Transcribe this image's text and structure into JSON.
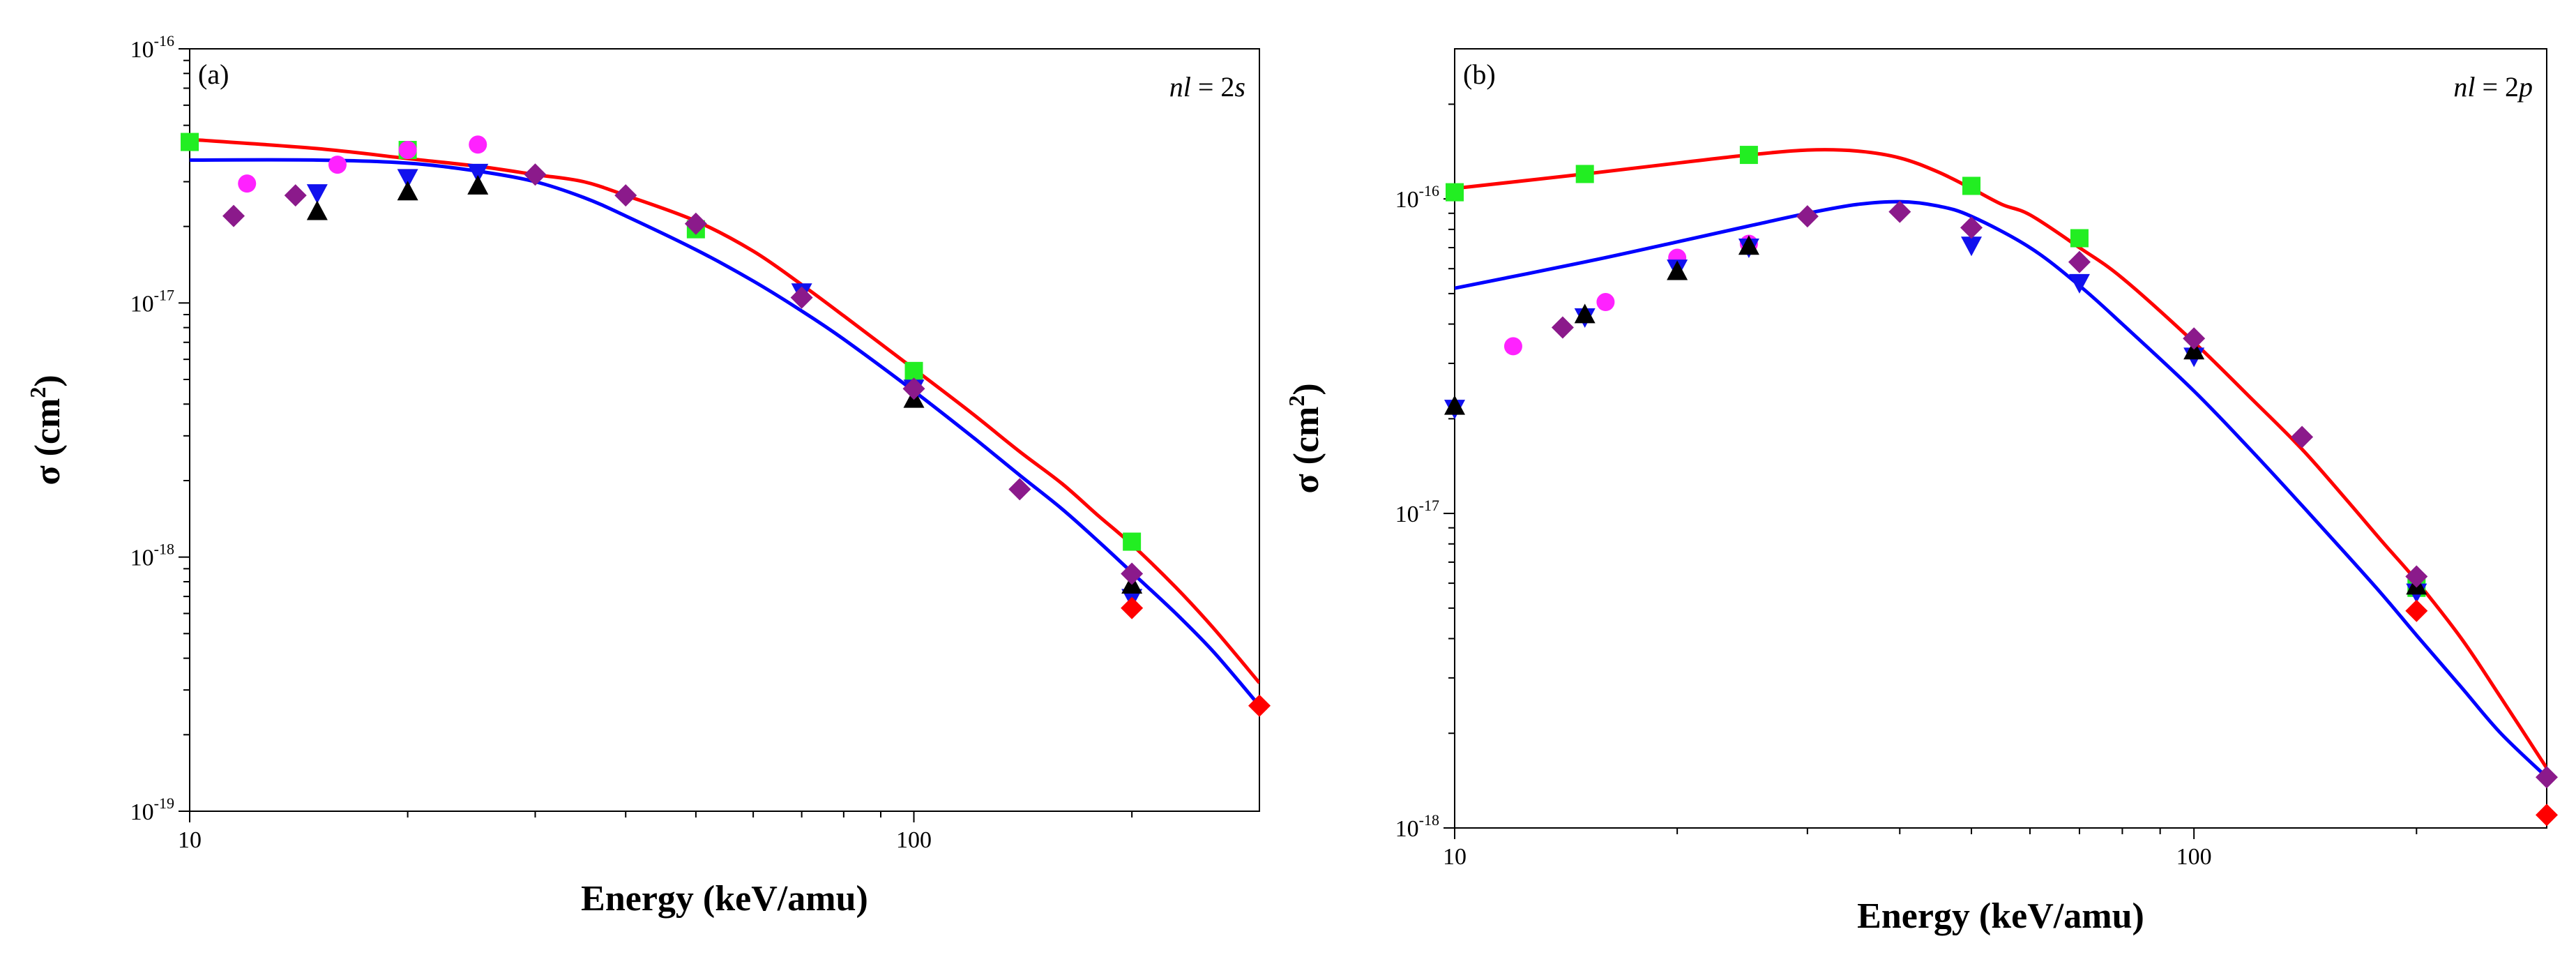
{
  "chart_data": [
    {
      "type": "scatter",
      "panel_label": "(a)",
      "annotation": {
        "prefix": "nl",
        "text": " = 2",
        "suffix": "s"
      },
      "xlabel": "Energy (keV/amu)",
      "ylabel": {
        "sym": "σ",
        "text": " (cm",
        "sup": "2",
        "close": ")"
      },
      "xscale": "log",
      "yscale": "log",
      "xlim": [
        10,
        300
      ],
      "ylim": [
        1e-19,
        1e-16
      ],
      "xticks": [
        {
          "value": 10,
          "label": "10"
        },
        {
          "value": 100,
          "label": "100"
        }
      ],
      "yticks": [
        {
          "value": 1e-19,
          "base": "10",
          "exp": "-19"
        },
        {
          "value": 1e-18,
          "base": "10",
          "exp": "-18"
        },
        {
          "value": 1e-17,
          "base": "10",
          "exp": "-17"
        },
        {
          "value": 1e-16,
          "base": "10",
          "exp": "-16"
        }
      ],
      "lines": [
        {
          "name": "red curve",
          "color": "#ff0000",
          "x": [
            10,
            15,
            20,
            25,
            30,
            35,
            40,
            50,
            60,
            70,
            80,
            100,
            120,
            140,
            160,
            180,
            200,
            230,
            260,
            300
          ],
          "y": [
            4.4e-17,
            4.05e-17,
            3.7e-17,
            3.45e-17,
            3.2e-17,
            3e-17,
            2.65e-17,
            2.1e-17,
            1.6e-17,
            1.18e-17,
            8.9e-18,
            5.5e-18,
            3.7e-18,
            2.6e-18,
            1.95e-18,
            1.45e-18,
            1.12e-18,
            7.6e-19,
            5.2e-19,
            3.2e-19
          ]
        },
        {
          "name": "blue curve",
          "color": "#0000ff",
          "x": [
            10,
            15,
            20,
            25,
            30,
            35,
            40,
            50,
            60,
            70,
            80,
            100,
            120,
            140,
            160,
            180,
            200,
            230,
            260,
            300
          ],
          "y": [
            3.65e-17,
            3.65e-17,
            3.55e-17,
            3.3e-17,
            3e-17,
            2.6e-17,
            2.2e-17,
            1.62e-17,
            1.22e-17,
            9.3e-18,
            7.2e-18,
            4.5e-18,
            3e-18,
            2.1e-18,
            1.55e-18,
            1.15e-18,
            8.7e-19,
            6e-19,
            4.2e-19,
            2.6e-19
          ]
        }
      ],
      "series": [
        {
          "name": "green squares",
          "marker": "square",
          "color": "#22ee22",
          "points": [
            [
              10,
              4.3e-17
            ],
            [
              20,
              4e-17
            ],
            [
              50,
              1.95e-17
            ],
            [
              100,
              5.4e-18
            ],
            [
              200,
              1.15e-18
            ]
          ]
        },
        {
          "name": "magenta circles",
          "marker": "circle",
          "color": "#ff22ff",
          "points": [
            [
              12,
              2.95e-17
            ],
            [
              16,
              3.5e-17
            ],
            [
              20,
              4e-17
            ],
            [
              25,
              4.2e-17
            ]
          ]
        },
        {
          "name": "blue down-triangles",
          "marker": "triangle-down",
          "color": "#1111ee",
          "points": [
            [
              15,
              2.7e-17
            ],
            [
              20,
              3.1e-17
            ],
            [
              25,
              3.25e-17
            ],
            [
              70,
              1.1e-17
            ],
            [
              100,
              4.6e-18
            ],
            [
              200,
              6.9e-19
            ]
          ]
        },
        {
          "name": "black up-triangles",
          "marker": "triangle-up",
          "color": "#000000",
          "points": [
            [
              15,
              2.3e-17
            ],
            [
              20,
              2.75e-17
            ],
            [
              25,
              2.9e-17
            ],
            [
              100,
              4.2e-18
            ],
            [
              200,
              7.8e-19
            ]
          ]
        },
        {
          "name": "purple diamonds",
          "marker": "diamond",
          "color": "#8b1a8b",
          "points": [
            [
              11.5,
              2.2e-17
            ],
            [
              14,
              2.65e-17
            ],
            [
              30,
              3.2e-17
            ],
            [
              40,
              2.65e-17
            ],
            [
              50,
              2.05e-17
            ],
            [
              70,
              1.05e-17
            ],
            [
              100,
              4.6e-18
            ],
            [
              140,
              1.85e-18
            ],
            [
              200,
              8.6e-19
            ]
          ]
        },
        {
          "name": "red diamonds",
          "marker": "diamond",
          "color": "#ff0000",
          "points": [
            [
              200,
              6.3e-19
            ],
            [
              300,
              2.6e-19
            ]
          ]
        }
      ]
    },
    {
      "type": "scatter",
      "panel_label": "(b)",
      "annotation": {
        "prefix": "nl",
        "text": " = 2",
        "suffix": "p"
      },
      "xlabel": "Energy (keV/amu)",
      "ylabel": {
        "sym": "σ",
        "text": " (cm",
        "sup": "2",
        "close": ")"
      },
      "xscale": "log",
      "yscale": "log",
      "xlim": [
        10,
        300
      ],
      "ylim": [
        1e-18,
        3e-16
      ],
      "xticks": [
        {
          "value": 10,
          "label": "10"
        },
        {
          "value": 100,
          "label": "100"
        }
      ],
      "yticks": [
        {
          "value": 1e-18,
          "base": "10",
          "exp": "-18"
        },
        {
          "value": 1e-17,
          "base": "10",
          "exp": "-17"
        },
        {
          "value": 1e-16,
          "base": "10",
          "exp": "-16"
        }
      ],
      "lines": [
        {
          "name": "red curve",
          "color": "#ff0000",
          "x": [
            10,
            15,
            20,
            25,
            30,
            35,
            40,
            45,
            50,
            55,
            60,
            70,
            80,
            100,
            120,
            140,
            160,
            180,
            200,
            230,
            260,
            300
          ],
          "y": [
            1.08e-16,
            1.2e-16,
            1.3e-16,
            1.38e-16,
            1.43e-16,
            1.42e-16,
            1.35e-16,
            1.22e-16,
            1.08e-16,
            9.6e-17,
            8.9e-17,
            7e-17,
            5.6e-17,
            3.5e-17,
            2.3e-17,
            1.6e-17,
            1.12e-17,
            8.1e-18,
            6.1e-18,
            4e-18,
            2.6e-18,
            1.55e-18
          ]
        },
        {
          "name": "blue curve",
          "color": "#0000ff",
          "x": [
            10,
            15,
            20,
            25,
            30,
            35,
            40,
            45,
            50,
            60,
            70,
            80,
            100,
            120,
            140,
            160,
            180,
            200,
            230,
            260,
            300
          ],
          "y": [
            5.2e-17,
            6.3e-17,
            7.3e-17,
            8.2e-17,
            9e-17,
            9.6e-17,
            9.8e-17,
            9.5e-17,
            8.8e-17,
            7e-17,
            5.3e-17,
            4e-17,
            2.45e-17,
            1.57e-17,
            1.06e-17,
            7.5e-18,
            5.5e-18,
            4.1e-18,
            2.8e-18,
            2e-18,
            1.45e-18
          ]
        }
      ],
      "series": [
        {
          "name": "green squares",
          "marker": "square",
          "color": "#22ee22",
          "points": [
            [
              10,
              1.05e-16
            ],
            [
              15,
              1.2e-16
            ],
            [
              25,
              1.38e-16
            ],
            [
              50,
              1.1e-16
            ],
            [
              70,
              7.5e-17
            ],
            [
              200,
              5.8e-18
            ]
          ]
        },
        {
          "name": "magenta circles",
          "marker": "circle",
          "color": "#ff22ff",
          "points": [
            [
              12,
              3.4e-17
            ],
            [
              16,
              4.7e-17
            ],
            [
              20,
              6.5e-17
            ],
            [
              25,
              7.2e-17
            ]
          ]
        },
        {
          "name": "blue down-triangles",
          "marker": "triangle-down",
          "color": "#1111ee",
          "points": [
            [
              10,
              2.15e-17
            ],
            [
              15,
              4.2e-17
            ],
            [
              20,
              6e-17
            ],
            [
              25,
              7e-17
            ],
            [
              50,
              7.1e-17
            ],
            [
              70,
              5.4e-17
            ],
            [
              100,
              3.15e-17
            ],
            [
              200,
              5.6e-18
            ]
          ]
        },
        {
          "name": "black up-triangles",
          "marker": "triangle-up",
          "color": "#000000",
          "points": [
            [
              10,
              2.2e-17
            ],
            [
              15,
              4.3e-17
            ],
            [
              20,
              5.9e-17
            ],
            [
              25,
              7.1e-17
            ],
            [
              100,
              3.3e-17
            ],
            [
              200,
              5.9e-18
            ]
          ]
        },
        {
          "name": "purple diamonds",
          "marker": "diamond",
          "color": "#8b1a8b",
          "points": [
            [
              14,
              3.9e-17
            ],
            [
              30,
              8.8e-17
            ],
            [
              40,
              9.1e-17
            ],
            [
              50,
              8.1e-17
            ],
            [
              70,
              6.3e-17
            ],
            [
              100,
              3.6e-17
            ],
            [
              140,
              1.75e-17
            ],
            [
              200,
              6.3e-18
            ],
            [
              300,
              1.45e-18
            ]
          ]
        },
        {
          "name": "red diamonds",
          "marker": "diamond",
          "color": "#ff0000",
          "points": [
            [
              200,
              4.9e-18
            ],
            [
              300,
              1.1e-18
            ]
          ]
        }
      ]
    }
  ]
}
